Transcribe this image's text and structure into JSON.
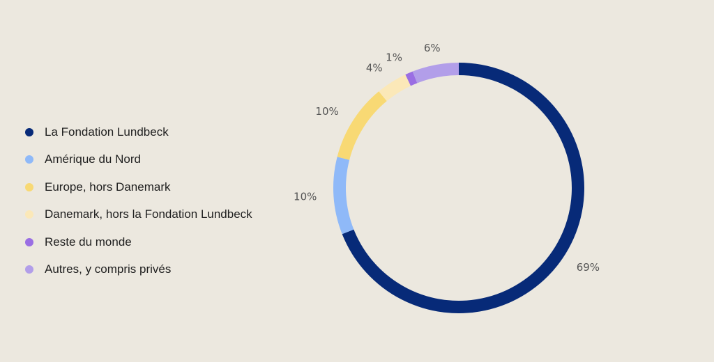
{
  "chart_data": {
    "type": "pie",
    "variant": "donut",
    "categories": [
      "La Fondation Lundbeck",
      "Amérique du Nord",
      "Europe, hors Danemark",
      "Danemark, hors la Fondation Lundbeck",
      "Reste du monde",
      "Autres, y compris privés"
    ],
    "values": [
      69,
      10,
      10,
      4,
      1,
      6
    ],
    "labels": [
      "69%",
      "10%",
      "10%",
      "4%",
      "1%",
      "6%"
    ],
    "colors": [
      "#072a78",
      "#8fb9f8",
      "#f8d974",
      "#fbe8b8",
      "#9a6ee3",
      "#b29ee9"
    ],
    "legend_position": "left"
  }
}
